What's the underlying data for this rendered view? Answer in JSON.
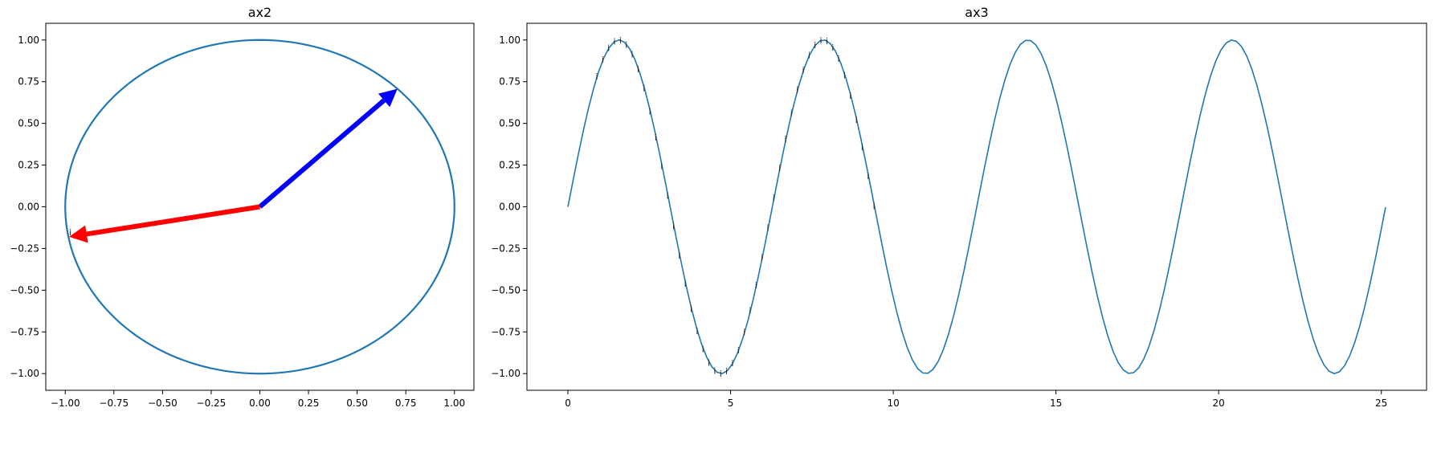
{
  "chart_data": [
    {
      "type": "line",
      "title": "ax2",
      "xlim": [
        -1.1,
        1.1
      ],
      "ylim": [
        -1.1,
        1.1
      ],
      "x_ticks": [
        -1.0,
        -0.75,
        -0.5,
        -0.25,
        0.0,
        0.25,
        0.5,
        0.75,
        1.0
      ],
      "y_ticks": [
        -1.0,
        -0.75,
        -0.5,
        -0.25,
        0.0,
        0.25,
        0.5,
        0.75,
        1.0
      ],
      "x_tick_labels": [
        "−1.00",
        "−0.75",
        "−0.50",
        "−0.25",
        "0.00",
        "0.25",
        "0.50",
        "0.75",
        "1.00"
      ],
      "y_tick_labels": [
        "−1.00",
        "−0.75",
        "−0.50",
        "−0.25",
        "0.00",
        "0.25",
        "0.50",
        "0.75",
        "1.00"
      ],
      "series": [
        {
          "shape": "circle",
          "center": [
            0,
            0
          ],
          "radius": 1.0,
          "color": "#1f77b4"
        }
      ],
      "arrows": [
        {
          "from": [
            0,
            0
          ],
          "to": [
            0.707,
            0.707
          ],
          "color": "#0000ff"
        },
        {
          "from": [
            0,
            0
          ],
          "to": [
            -0.98,
            -0.18
          ],
          "color": "#ff0000"
        }
      ],
      "annotations": [
        {
          "text": "i",
          "x": -0.98,
          "y": -0.17
        }
      ],
      "grid": false
    },
    {
      "type": "line",
      "title": "ax3",
      "xlim": [
        -1.26,
        26.39
      ],
      "ylim": [
        -1.1,
        1.1
      ],
      "x_ticks": [
        0,
        5,
        10,
        15,
        20,
        25
      ],
      "y_ticks": [
        -1.0,
        -0.75,
        -0.5,
        -0.25,
        0.0,
        0.25,
        0.5,
        0.75,
        1.0
      ],
      "x_tick_labels": [
        "0",
        "5",
        "10",
        "15",
        "20",
        "25"
      ],
      "y_tick_labels": [
        "−1.00",
        "−0.75",
        "−0.50",
        "−0.25",
        "0.00",
        "0.25",
        "0.50",
        "0.75",
        "1.00"
      ],
      "series": [
        {
          "function": "sin(x)",
          "x_range": [
            0,
            25.13
          ],
          "points": 160,
          "color": "#1f77b4"
        }
      ],
      "annotations": {
        "text": "i",
        "x_range": [
          0.9,
          9.42
        ],
        "count": 48
      },
      "grid": false
    }
  ]
}
